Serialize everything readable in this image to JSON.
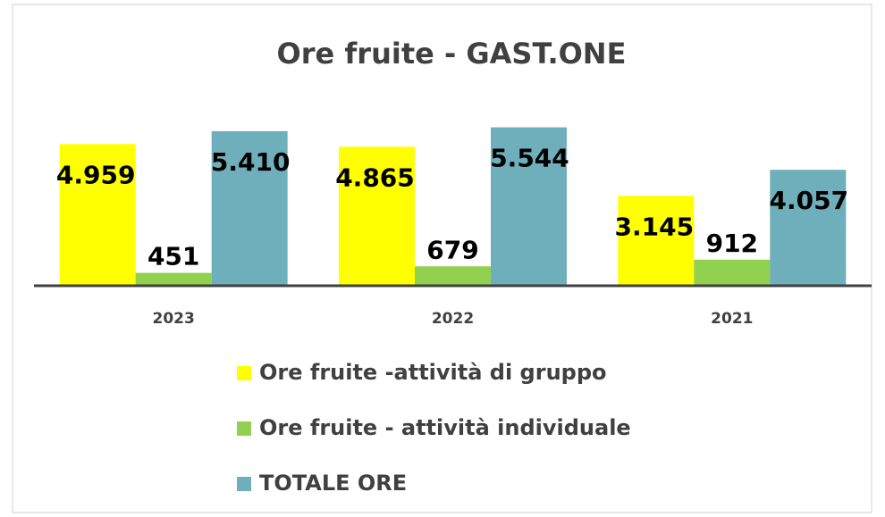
{
  "chart_data": {
    "type": "bar",
    "title": "Ore fruite - GAST.ONE",
    "categories": [
      "2023",
      "2022",
      "2021"
    ],
    "series": [
      {
        "name": "Ore fruite -attività di gruppo",
        "color": "#ffff00",
        "values": [
          4959,
          4865,
          3145
        ],
        "value_labels": [
          "4.959",
          "4.865",
          "3.145"
        ]
      },
      {
        "name": "Ore fruite - attività individuale",
        "color": "#92d050",
        "values": [
          451,
          679,
          912
        ],
        "value_labels": [
          "451",
          "679",
          "912"
        ]
      },
      {
        "name": "TOTALE ORE",
        "color": "#6eafbb",
        "values": [
          5410,
          5544,
          4057
        ],
        "value_labels": [
          "5.410",
          "5.544",
          "4.057"
        ]
      }
    ],
    "ylim": [
      0,
      6000
    ]
  }
}
